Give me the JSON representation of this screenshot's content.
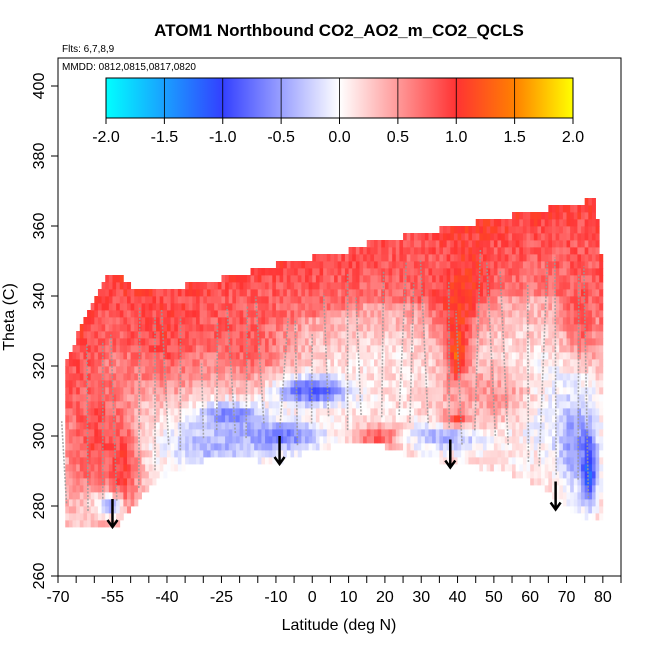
{
  "chart_data": {
    "type": "heatmap",
    "title": "ATOM1 Northbound CO2_AO2_m_CO2_QCLS",
    "flights_note": "Flts: 6,7,8,9",
    "dates_note": "MMDD: 0812,0815,0817,0820",
    "xlabel": "Latitude (deg N)",
    "ylabel": "Theta (C)",
    "xlim": [
      -70,
      85
    ],
    "ylim": [
      260,
      408
    ],
    "x_ticks": [
      -70,
      -55,
      -40,
      -25,
      -10,
      0,
      10,
      20,
      30,
      40,
      50,
      60,
      70,
      80
    ],
    "x_tick_labels": [
      "-70",
      "-55",
      "-40",
      "-25",
      "-10",
      "0",
      "10",
      "20",
      "30",
      "40",
      "50",
      "60",
      "70",
      "80"
    ],
    "x_minor_ticks": [
      -65,
      -60,
      -50,
      -45,
      -35,
      -30,
      -20,
      -15,
      -5,
      5,
      15,
      25,
      35,
      45,
      55,
      65,
      75,
      85
    ],
    "y_ticks": [
      260,
      280,
      300,
      320,
      340,
      360,
      380,
      400
    ],
    "y_tick_labels": [
      "260",
      "280",
      "300",
      "320",
      "340",
      "360",
      "380",
      "400"
    ],
    "colorbar": {
      "range": [
        -2.0,
        2.0
      ],
      "ticks": [
        -2.0,
        -1.5,
        -1.0,
        -0.5,
        0.0,
        0.5,
        1.0,
        1.5,
        2.0
      ],
      "tick_labels": [
        "-2.0",
        "-1.5",
        "-1.0",
        "-0.5",
        "0.0",
        "0.5",
        "1.0",
        "1.5",
        "2.0"
      ],
      "stops": [
        {
          "v": -2.0,
          "color": "#00ffff"
        },
        {
          "v": -1.0,
          "color": "#3340ff"
        },
        {
          "v": 0.0,
          "color": "#ffffff"
        },
        {
          "v": 1.0,
          "color": "#ff3333"
        },
        {
          "v": 1.5,
          "color": "#ff8000"
        },
        {
          "v": 2.0,
          "color": "#ffff00"
        }
      ]
    },
    "envelope": {
      "lat": [
        -68,
        -62,
        -56,
        -53,
        -50,
        -45,
        -40,
        -35,
        -30,
        -25,
        -20,
        -15,
        -10,
        -5,
        0,
        5,
        10,
        15,
        20,
        25,
        30,
        35,
        40,
        45,
        50,
        55,
        60,
        65,
        70,
        72,
        75,
        77,
        78,
        80
      ],
      "theta_bottom": [
        274,
        274,
        274,
        276,
        280,
        286,
        290,
        292,
        294,
        295,
        295,
        294,
        293,
        295,
        297,
        298,
        299,
        299,
        298,
        296,
        295,
        294,
        293,
        292,
        291,
        290,
        288,
        285,
        281,
        279,
        277,
        277,
        277,
        277
      ],
      "theta_top": [
        320,
        334,
        345,
        345,
        342,
        340,
        341,
        342,
        343,
        344,
        345,
        347,
        348,
        349,
        350,
        351,
        352,
        354,
        355,
        356,
        357,
        358,
        359,
        360,
        361,
        362,
        363,
        364,
        365,
        366,
        366,
        367,
        366,
        345
      ]
    },
    "features": [
      {
        "lat": -60,
        "theta": 300,
        "value": 0.9,
        "dlat": 9,
        "dtheta": 26
      },
      {
        "lat": -40,
        "theta": 330,
        "value": 0.9,
        "dlat": 14,
        "dtheta": 18
      },
      {
        "lat": -52,
        "theta": 292,
        "value": 1.0,
        "dlat": 4,
        "dtheta": 14
      },
      {
        "lat": -57,
        "theta": 280,
        "value": -1.1,
        "dlat": 4,
        "dtheta": 3
      },
      {
        "lat": -22,
        "theta": 306,
        "value": -1.0,
        "dlat": 8,
        "dtheta": 4
      },
      {
        "lat": -10,
        "theta": 300,
        "value": -0.8,
        "dlat": 12,
        "dtheta": 4
      },
      {
        "lat": -27,
        "theta": 298,
        "value": -0.4,
        "dlat": 14,
        "dtheta": 8
      },
      {
        "lat": -18,
        "theta": 328,
        "value": 0.8,
        "dlat": 12,
        "dtheta": 14
      },
      {
        "lat": 0,
        "theta": 313,
        "value": -0.9,
        "dlat": 10,
        "dtheta": 4
      },
      {
        "lat": 18,
        "theta": 300,
        "value": 0.9,
        "dlat": 6,
        "dtheta": 3
      },
      {
        "lat": 38,
        "theta": 300,
        "value": -0.6,
        "dlat": 10,
        "dtheta": 4
      },
      {
        "lat": 40,
        "theta": 345,
        "value": 1.2,
        "dlat": 8,
        "dtheta": 14
      },
      {
        "lat": 40,
        "theta": 330,
        "value": 1.1,
        "dlat": 4,
        "dtheta": 18
      },
      {
        "lat": 40,
        "theta": 322,
        "value": 1.5,
        "dlat": 2,
        "dtheta": 5
      },
      {
        "lat": 40,
        "theta": 305,
        "value": 1.2,
        "dlat": 4,
        "dtheta": 2
      },
      {
        "lat": 25,
        "theta": 350,
        "value": 0.8,
        "dlat": 20,
        "dtheta": 10
      },
      {
        "lat": 74,
        "theta": 335,
        "value": 0.9,
        "dlat": 5,
        "dtheta": 16
      },
      {
        "lat": 76,
        "theta": 292,
        "value": -1.6,
        "dlat": 2,
        "dtheta": 10
      },
      {
        "lat": 72,
        "theta": 300,
        "value": -0.7,
        "dlat": 5,
        "dtheta": 14
      },
      {
        "lat": 62,
        "theta": 310,
        "value": -0.3,
        "dlat": 12,
        "dtheta": 12
      },
      {
        "lat": 50,
        "theta": 312,
        "value": 0.5,
        "dlat": 14,
        "dtheta": 10
      },
      {
        "lat": -62,
        "theta": 280,
        "value": 0.3,
        "dlat": 6,
        "dtheta": 6
      }
    ],
    "arrows": [
      {
        "lat": -55,
        "theta_from": 282,
        "theta_to": 274
      },
      {
        "lat": -9,
        "theta_from": 300,
        "theta_to": 292
      },
      {
        "lat": 38,
        "theta_from": 299,
        "theta_to": 291
      },
      {
        "lat": 67,
        "theta_from": 287,
        "theta_to": 279
      }
    ]
  }
}
